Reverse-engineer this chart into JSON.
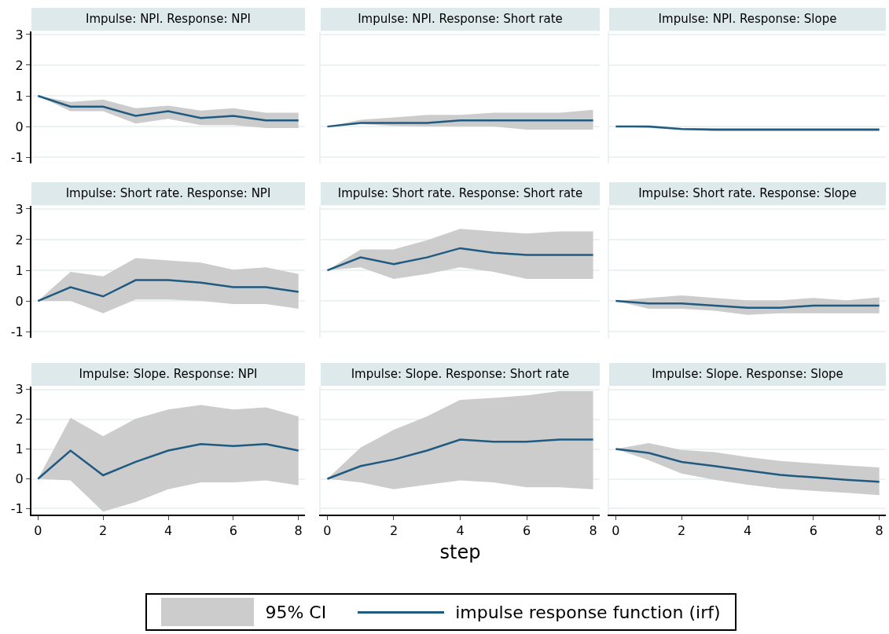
{
  "chart_data": [
    {
      "type": "line",
      "title": "Impulse: NPI. Response: NPI",
      "annotations": [
        "95% CI"
      ],
      "x": [
        0,
        1,
        2,
        3,
        4,
        5,
        6,
        7,
        8
      ],
      "xlim": [
        -0.2,
        8.2
      ],
      "xticks": [
        0,
        2,
        4,
        6,
        8
      ],
      "ylim": [
        -1.2,
        3.1
      ],
      "yticks": [
        -1,
        0,
        1,
        2,
        3
      ],
      "grid": "y",
      "tick_labels": "y",
      "legend": "bottom",
      "series": [
        {
          "name": "impulse response function (irf)",
          "color": "#1f5a80",
          "values": [
            1,
            0.65,
            0.65,
            0.35,
            0.5,
            0.28,
            0.35,
            0.2,
            0.2
          ],
          "lower": [
            1,
            0.5,
            0.5,
            0.1,
            0.25,
            0.05,
            0.05,
            -0.05,
            -0.05
          ],
          "upper": [
            1,
            0.8,
            0.88,
            0.6,
            0.68,
            0.52,
            0.6,
            0.45,
            0.45
          ]
        }
      ]
    },
    {
      "type": "line",
      "title": "Impulse: NPI. Response: Short rate",
      "x": [
        0,
        1,
        2,
        3,
        4,
        5,
        6,
        7,
        8
      ],
      "xlim": [
        -0.2,
        8.2
      ],
      "xticks": [
        0,
        2,
        4,
        6,
        8
      ],
      "ylim": [
        -1.2,
        3.1
      ],
      "yticks": [
        -1,
        0,
        1,
        2,
        3
      ],
      "grid": "y",
      "tick_labels": false,
      "series": [
        {
          "color": "#1f5a80",
          "values": [
            0,
            0.12,
            0.12,
            0.12,
            0.2,
            0.2,
            0.2,
            0.2,
            0.2
          ],
          "lower": [
            0,
            0.08,
            0.02,
            0,
            0,
            0,
            -0.1,
            -0.1,
            -0.1
          ],
          "upper": [
            0,
            0.22,
            0.3,
            0.38,
            0.38,
            0.45,
            0.45,
            0.45,
            0.55
          ]
        }
      ]
    },
    {
      "type": "line",
      "title": "Impulse: NPI. Response: Slope",
      "x": [
        0,
        1,
        2,
        3,
        4,
        5,
        6,
        7,
        8
      ],
      "xlim": [
        -0.2,
        8.2
      ],
      "xticks": [
        0,
        2,
        4,
        6,
        8
      ],
      "ylim": [
        -1.2,
        3.1
      ],
      "yticks": [
        -1,
        0,
        1,
        2,
        3
      ],
      "grid": "y",
      "tick_labels": false,
      "series": [
        {
          "color": "#1f5a80",
          "values": [
            0,
            0,
            -0.08,
            -0.1,
            -0.1,
            -0.1,
            -0.1,
            -0.1,
            -0.1
          ],
          "lower": [
            0,
            -0.05,
            -0.1,
            -0.15,
            -0.15,
            -0.15,
            -0.15,
            -0.15,
            -0.15
          ],
          "upper": [
            0,
            0.02,
            -0.05,
            -0.05,
            -0.05,
            -0.05,
            -0.05,
            -0.05,
            -0.05
          ]
        }
      ]
    },
    {
      "type": "line",
      "title": "Impulse: Short rate. Response: NPI",
      "x": [
        0,
        1,
        2,
        3,
        4,
        5,
        6,
        7,
        8
      ],
      "xlim": [
        -0.2,
        8.2
      ],
      "xticks": [
        0,
        2,
        4,
        6,
        8
      ],
      "ylim": [
        -1.2,
        3.1
      ],
      "yticks": [
        -1,
        0,
        1,
        2,
        3
      ],
      "grid": "y",
      "tick_labels": "y",
      "series": [
        {
          "color": "#1f5a80",
          "values": [
            0,
            0.45,
            0.15,
            0.68,
            0.68,
            0.6,
            0.45,
            0.45,
            0.3
          ],
          "lower": [
            0,
            0,
            -0.4,
            0.05,
            0.05,
            0,
            -0.1,
            -0.1,
            -0.25
          ],
          "upper": [
            0,
            0.95,
            0.8,
            1.4,
            1.32,
            1.25,
            1.02,
            1.1,
            0.88
          ]
        }
      ]
    },
    {
      "type": "line",
      "title": "Impulse: Short rate. Response: Short rate",
      "x": [
        0,
        1,
        2,
        3,
        4,
        5,
        6,
        7,
        8
      ],
      "xlim": [
        -0.2,
        8.2
      ],
      "xticks": [
        0,
        2,
        4,
        6,
        8
      ],
      "ylim": [
        -1.2,
        3.1
      ],
      "yticks": [
        -1,
        0,
        1,
        2,
        3
      ],
      "grid": "y",
      "tick_labels": false,
      "series": [
        {
          "color": "#1f5a80",
          "values": [
            1,
            1.42,
            1.2,
            1.42,
            1.72,
            1.57,
            1.5,
            1.5,
            1.5
          ],
          "lower": [
            1,
            1.1,
            0.72,
            0.88,
            1.1,
            0.95,
            0.72,
            0.72,
            0.72
          ],
          "upper": [
            1,
            1.68,
            1.68,
            1.98,
            2.35,
            2.27,
            2.2,
            2.27,
            2.27
          ]
        }
      ]
    },
    {
      "type": "line",
      "title": "Impulse: Short rate. Response: Slope",
      "x": [
        0,
        1,
        2,
        3,
        4,
        5,
        6,
        7,
        8
      ],
      "xlim": [
        -0.2,
        8.2
      ],
      "xticks": [
        0,
        2,
        4,
        6,
        8
      ],
      "ylim": [
        -1.2,
        3.1
      ],
      "yticks": [
        -1,
        0,
        1,
        2,
        3
      ],
      "grid": "y",
      "tick_labels": false,
      "series": [
        {
          "color": "#1f5a80",
          "values": [
            0,
            -0.08,
            -0.08,
            -0.15,
            -0.22,
            -0.22,
            -0.15,
            -0.15,
            -0.15
          ],
          "lower": [
            0,
            -0.25,
            -0.25,
            -0.32,
            -0.45,
            -0.4,
            -0.4,
            -0.4,
            -0.4
          ],
          "upper": [
            0,
            0.1,
            0.18,
            0.1,
            0.02,
            0.02,
            0.1,
            0.02,
            0.12
          ]
        }
      ]
    },
    {
      "type": "line",
      "title": "Impulse: Slope. Response: NPI",
      "x": [
        0,
        1,
        2,
        3,
        4,
        5,
        6,
        7,
        8
      ],
      "xlim": [
        -0.2,
        8.2
      ],
      "xticks": [
        0,
        2,
        4,
        6,
        8
      ],
      "ylim": [
        -1.2,
        3.1
      ],
      "yticks": [
        -1,
        0,
        1,
        2,
        3
      ],
      "grid": "y",
      "series": [
        {
          "color": "#1f5a80",
          "values": [
            0,
            0.95,
            0.12,
            0.57,
            0.95,
            1.17,
            1.1,
            1.17,
            0.95
          ],
          "lower": [
            0,
            -0.05,
            -1.1,
            -0.78,
            -0.35,
            -0.12,
            -0.12,
            -0.05,
            -0.22
          ],
          "upper": [
            0,
            2.05,
            1.43,
            2.02,
            2.33,
            2.48,
            2.33,
            2.4,
            2.1
          ]
        }
      ]
    },
    {
      "type": "line",
      "title": "Impulse: Slope. Response: Short rate",
      "xlabel": "step",
      "x": [
        0,
        1,
        2,
        3,
        4,
        5,
        6,
        7,
        8
      ],
      "xlim": [
        -0.2,
        8.2
      ],
      "xticks": [
        0,
        2,
        4,
        6,
        8
      ],
      "ylim": [
        -1.2,
        3.1
      ],
      "yticks": [
        -1,
        0,
        1,
        2,
        3
      ],
      "grid": "y",
      "tick_labels": "x",
      "series": [
        {
          "color": "#1f5a80",
          "values": [
            0,
            0.43,
            0.65,
            0.95,
            1.32,
            1.25,
            1.25,
            1.32,
            1.32
          ],
          "lower": [
            0,
            -0.12,
            -0.35,
            -0.2,
            -0.05,
            -0.12,
            -0.28,
            -0.28,
            -0.35
          ],
          "upper": [
            0,
            1.05,
            1.65,
            2.1,
            2.65,
            2.72,
            2.8,
            2.95,
            2.95
          ]
        }
      ]
    },
    {
      "type": "line",
      "title": "Impulse: Slope. Response: Slope",
      "x": [
        0,
        1,
        2,
        3,
        4,
        5,
        6,
        7,
        8
      ],
      "xlim": [
        -0.2,
        8.2
      ],
      "xticks": [
        0,
        2,
        4,
        6,
        8
      ],
      "ylim": [
        -1.2,
        3.1
      ],
      "yticks": [
        -1,
        0,
        1,
        2,
        3
      ],
      "grid": "y",
      "tick_labels": "x",
      "series": [
        {
          "color": "#1f5a80",
          "values": [
            1,
            0.87,
            0.57,
            0.43,
            0.28,
            0.13,
            0.05,
            -0.03,
            -0.1
          ],
          "lower": [
            1,
            0.63,
            0.18,
            -0.03,
            -0.2,
            -0.33,
            -0.4,
            -0.47,
            -0.55
          ],
          "upper": [
            1,
            1.2,
            0.97,
            0.9,
            0.73,
            0.6,
            0.52,
            0.45,
            0.38
          ]
        }
      ]
    }
  ]
}
